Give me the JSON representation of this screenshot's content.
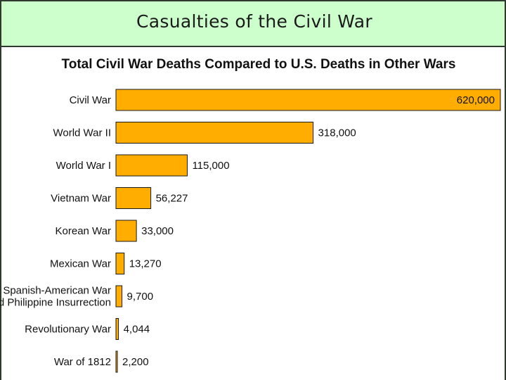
{
  "slide": {
    "title": "Casualties of the Civil War"
  },
  "colors": {
    "header_bg": "#ccffcc",
    "bar_fill": "#ffad00"
  },
  "chart_data": {
    "type": "bar",
    "orientation": "horizontal",
    "title": "Total Civil War Deaths Compared to U.S. Deaths in Other Wars",
    "xlabel": "",
    "ylabel": "",
    "xlim": [
      0,
      620000
    ],
    "grid": false,
    "categories": [
      "Civil War",
      "World War II",
      "World War I",
      "Vietnam War",
      "Korean War",
      "Mexican War",
      "Spanish-American War and Philippine Insurrection",
      "Revolutionary War",
      "War of 1812"
    ],
    "category_lines": [
      [
        "Civil War"
      ],
      [
        "World War II"
      ],
      [
        "World War I"
      ],
      [
        "Vietnam War"
      ],
      [
        "Korean War"
      ],
      [
        "Mexican War"
      ],
      [
        "Spanish-American War",
        "and Philippine Insurrection"
      ],
      [
        "Revolutionary War"
      ],
      [
        "War of 1812"
      ]
    ],
    "values": [
      620000,
      318000,
      115000,
      56227,
      33000,
      13270,
      9700,
      4044,
      2200
    ],
    "value_labels": [
      "620,000",
      "318,000",
      "115,000",
      "56,227",
      "33,000",
      "13,270",
      "9,700",
      "4,044",
      "2,200"
    ]
  }
}
